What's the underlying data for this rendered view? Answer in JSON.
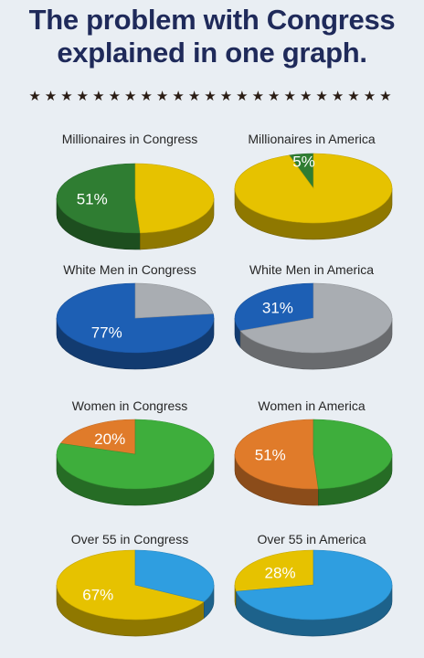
{
  "header": {
    "title_line1": "The problem with Congress",
    "title_line2": "explained in one graph.",
    "stars": "★★★★★★★★★★★★★★★★★★★★★★★"
  },
  "chart_data": [
    {
      "type": "pie",
      "title": "Millionaires in Congress",
      "values": [
        51,
        49
      ],
      "label": "51%",
      "colors": [
        "#2f7d32",
        "#e6c200"
      ]
    },
    {
      "type": "pie",
      "title": "Millionaires in America",
      "values": [
        5,
        95
      ],
      "label": "5%",
      "colors": [
        "#2f7d32",
        "#e6c200"
      ]
    },
    {
      "type": "pie",
      "title": "White Men in Congress",
      "values": [
        77,
        23
      ],
      "label": "77%",
      "colors": [
        "#1d5fb4",
        "#a9adb2"
      ]
    },
    {
      "type": "pie",
      "title": "White Men in America",
      "values": [
        31,
        69
      ],
      "label": "31%",
      "colors": [
        "#1d5fb4",
        "#a9adb2"
      ]
    },
    {
      "type": "pie",
      "title": "Women in Congress",
      "values": [
        20,
        80
      ],
      "label": "20%",
      "colors": [
        "#e07b2a",
        "#3eae3c"
      ]
    },
    {
      "type": "pie",
      "title": "Women in America",
      "values": [
        51,
        49
      ],
      "label": "51%",
      "colors": [
        "#e07b2a",
        "#3eae3c"
      ]
    },
    {
      "type": "pie",
      "title": "Over 55 in Congress",
      "values": [
        67,
        33
      ],
      "label": "67%",
      "colors": [
        "#e6c200",
        "#2f9ee0"
      ]
    },
    {
      "type": "pie",
      "title": "Over 55 in America",
      "values": [
        28,
        72
      ],
      "label": "28%",
      "colors": [
        "#e6c200",
        "#2f9ee0"
      ]
    }
  ]
}
